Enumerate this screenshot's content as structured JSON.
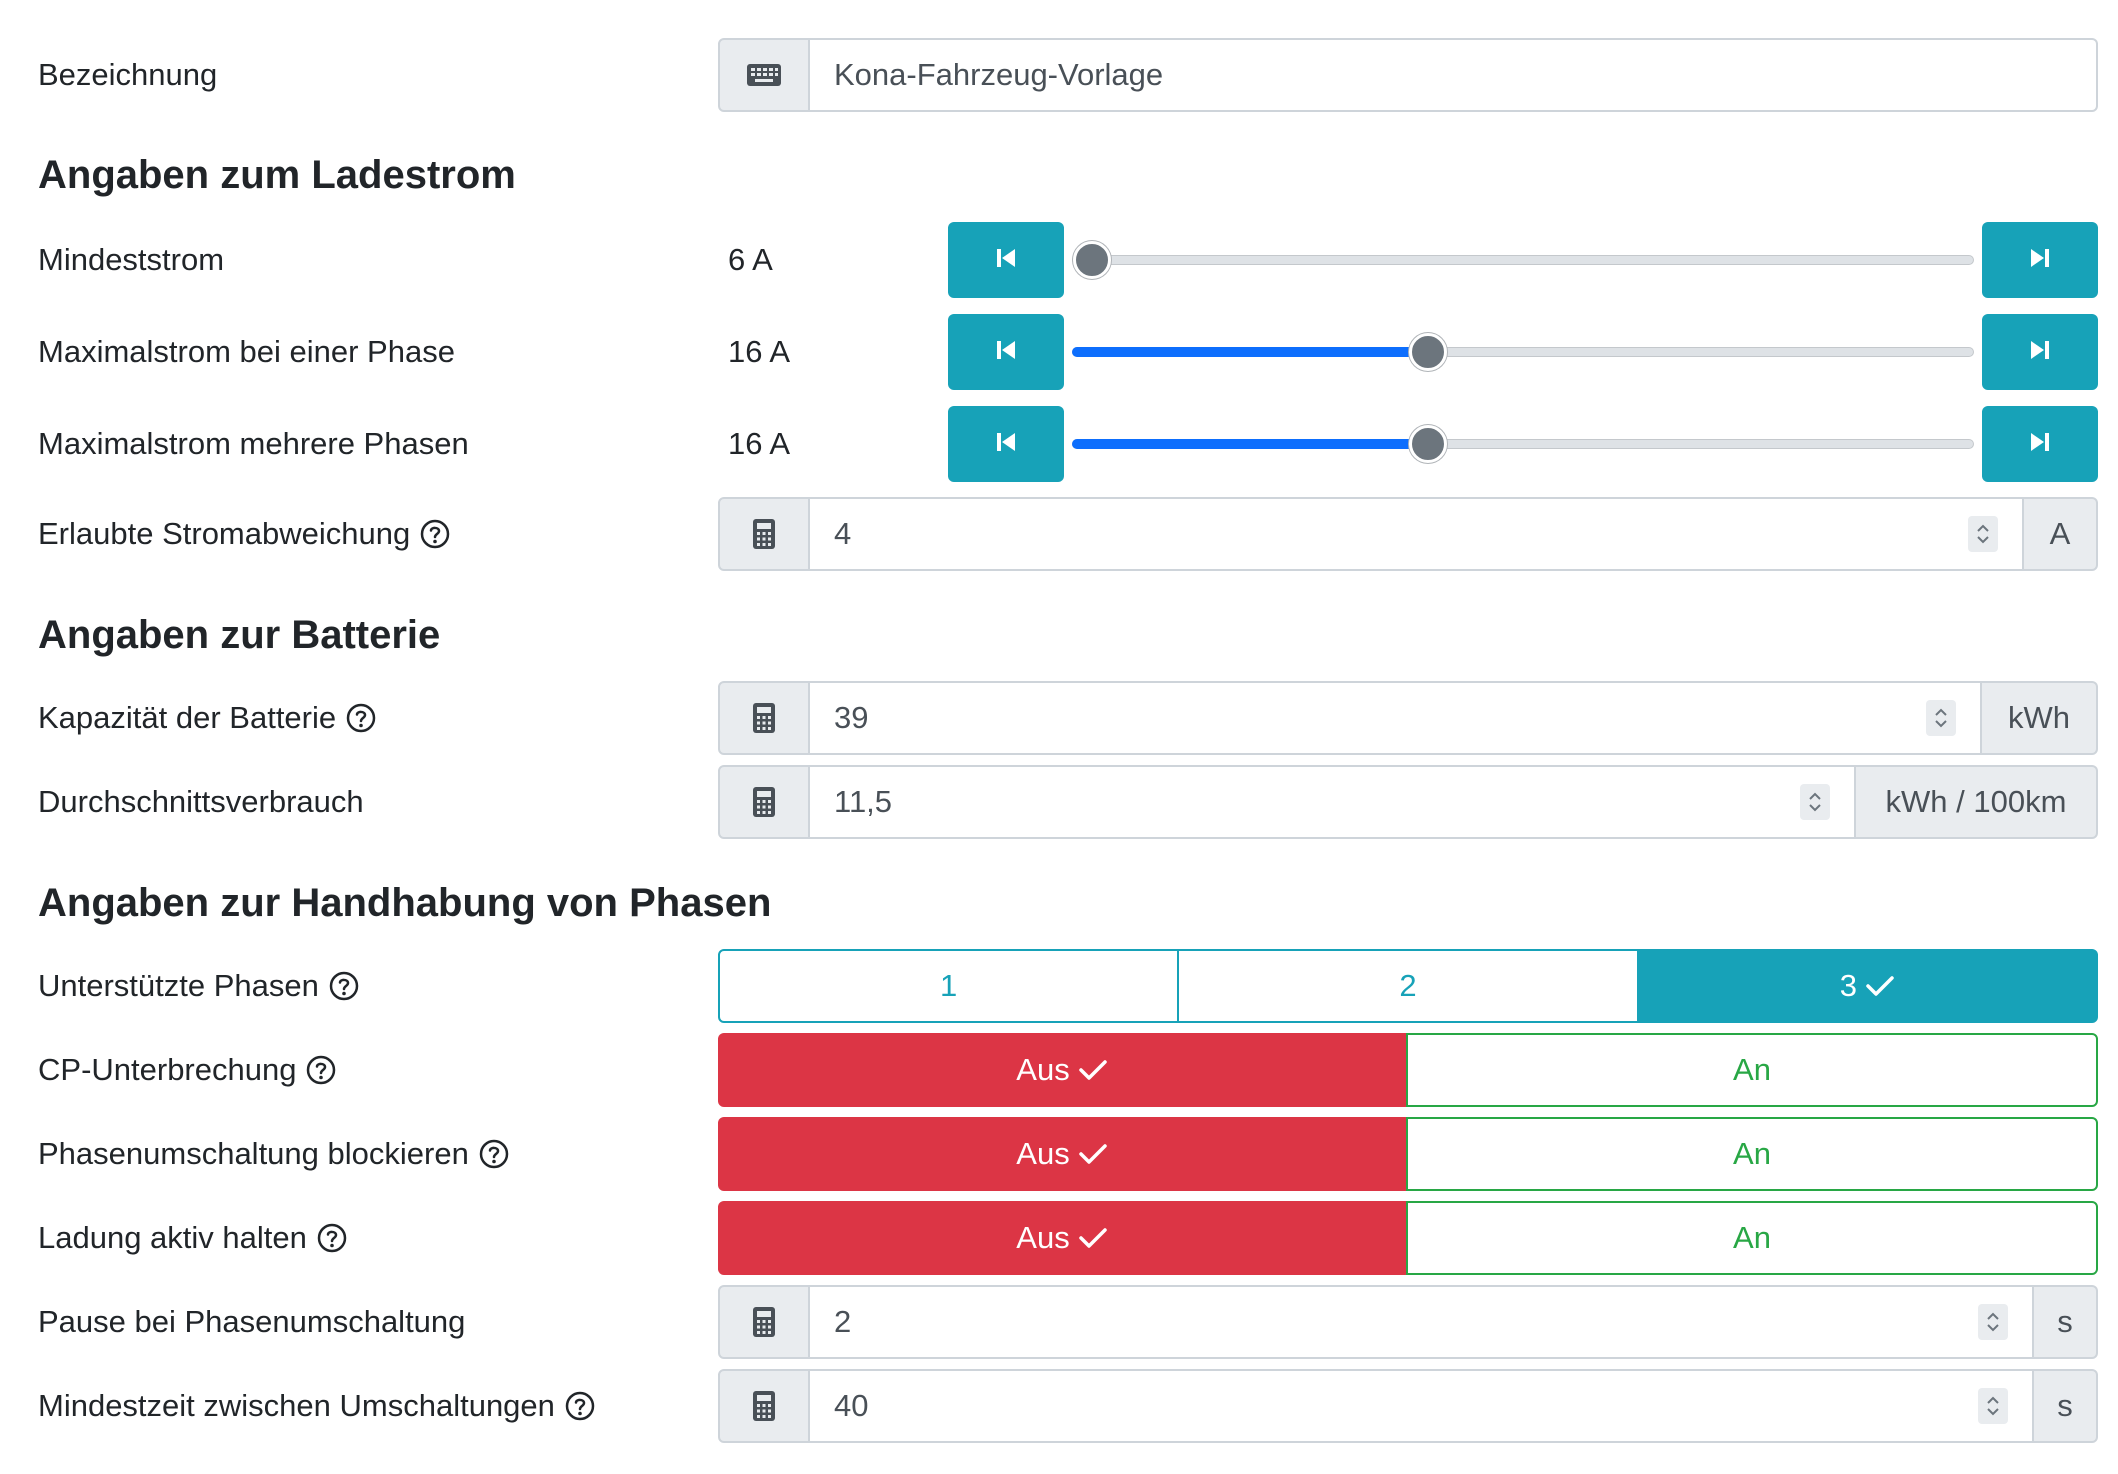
{
  "bezeichnung": {
    "label": "Bezeichnung",
    "value": "Kona-Fahrzeug-Vorlage",
    "icon": "keyboard-icon"
  },
  "sections": {
    "ladestrom": "Angaben zum Ladestrom",
    "batterie": "Angaben zur Batterie",
    "phasen": "Angaben zur Handhabung von Phasen"
  },
  "sliders": [
    {
      "label": "Mindeststrom",
      "value": "6 A",
      "fraction": 0.0
    },
    {
      "label": "Maximalstrom bei einer Phase",
      "value": "16 A",
      "fraction": 0.39
    },
    {
      "label": "Maximalstrom mehrere Phasen",
      "value": "16 A",
      "fraction": 0.39
    }
  ],
  "stromabweichung": {
    "label": "Erlaubte Stromabweichung",
    "value": "4",
    "unit": "A"
  },
  "kapazitaet": {
    "label": "Kapazität der Batterie",
    "value": "39",
    "unit": "kWh"
  },
  "verbrauch": {
    "label": "Durchschnittsverbrauch",
    "value": "11,5",
    "unit": "kWh / 100km"
  },
  "phasen": {
    "label": "Unterstützte Phasen",
    "options": [
      "1",
      "2",
      "3"
    ],
    "selected": "3"
  },
  "toggles": [
    {
      "label": "CP-Unterbrechung",
      "off": "Aus",
      "on": "An",
      "state": "off"
    },
    {
      "label": "Phasenumschaltung blockieren",
      "off": "Aus",
      "on": "An",
      "state": "off"
    },
    {
      "label": "Ladung aktiv halten",
      "off": "Aus",
      "on": "An",
      "state": "off"
    }
  ],
  "pause": {
    "label": "Pause bei Phasenumschaltung",
    "value": "2",
    "unit": "s"
  },
  "mindestzeit": {
    "label": "Mindestzeit zwischen Umschaltungen",
    "value": "40",
    "unit": "s"
  },
  "colors": {
    "accent": "#17a2b8",
    "danger": "#dc3545",
    "success": "#28a745",
    "slider_fill": "#0d6efd"
  }
}
